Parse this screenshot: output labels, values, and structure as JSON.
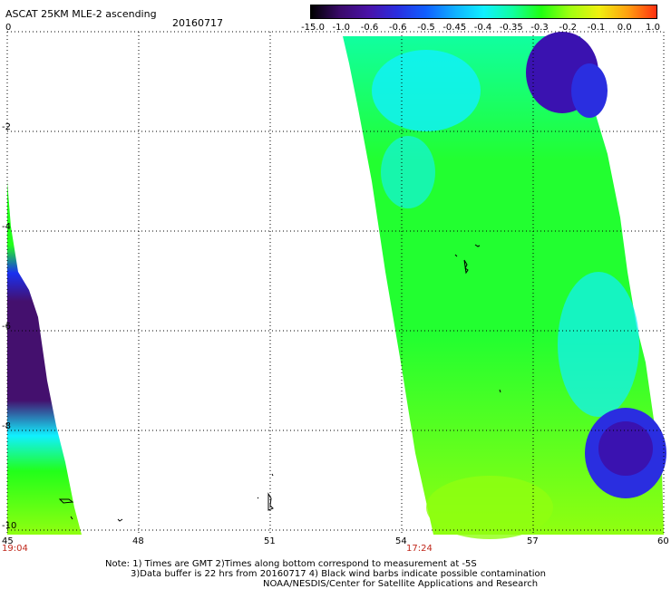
{
  "header": {
    "title": "ASCAT 25KM MLE-2 ascending",
    "date": "20160717"
  },
  "colorbar": {
    "labels": [
      "-15.0",
      "-1.0",
      "-0.6",
      "-0.6",
      "-0.5",
      "-0.45",
      "-0.4",
      "-0.35",
      "-0.3",
      "-0.2",
      "-0.1",
      "0.0",
      "1.0"
    ],
    "colors": [
      "#000000",
      "#3a0a6a",
      "#4a12a8",
      "#2a2ee0",
      "#1060ff",
      "#10b0ff",
      "#10f0ff",
      "#10ffa0",
      "#20ff10",
      "#a0ff10",
      "#f0f010",
      "#ffa010",
      "#ff3010"
    ]
  },
  "axes": {
    "x_ticks": [
      "45",
      "48",
      "51",
      "54",
      "57",
      "60"
    ],
    "y_ticks": [
      "0",
      "-2",
      "-4",
      "-6",
      "-8",
      "-10"
    ]
  },
  "times": {
    "left": "19:04",
    "middle": "17:24"
  },
  "notes": {
    "line1": "Note: 1) Times are GMT 2)Times along bottom correspond to measurement at -5S",
    "line2": "3)Data buffer is 22 hrs from 20160717 4) Black wind barbs indicate possible contamination",
    "line3": "NOAA/NESDIS/Center for Satellite Applications and Research"
  },
  "map": {
    "left_swath": {
      "fill_colors": [
        "#44106e",
        "#1a30f0",
        "#10f0ff",
        "#22ff1a",
        "#90ff10"
      ]
    },
    "right_swath": {
      "fill_colors": [
        "#22ff30",
        "#10ffa0",
        "#10f0ff",
        "#3a12b0",
        "#2a2ee0",
        "#90ff10"
      ]
    }
  }
}
